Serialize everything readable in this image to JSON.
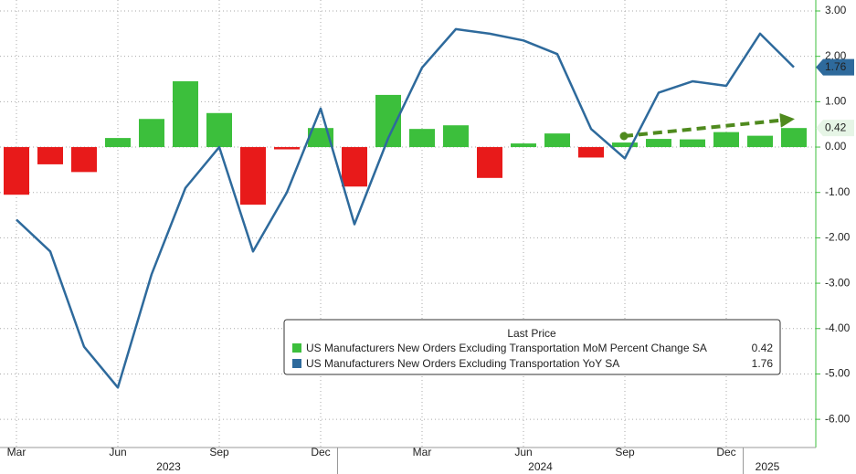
{
  "chart_data": {
    "type": "bar_line",
    "categories": [
      "Mar",
      null,
      null,
      "Jun",
      null,
      null,
      "Sep",
      null,
      null,
      "Dec",
      null,
      null,
      "Mar",
      null,
      null,
      "Jun",
      null,
      null,
      "Sep",
      null,
      null,
      "Dec",
      null,
      null
    ],
    "years": [
      "2023",
      "2024",
      "2025"
    ],
    "legend_title": "Last Price",
    "series": [
      {
        "name": "US Manufacturers New Orders Excluding Transportation MoM Percent Change SA",
        "color": "#3cbf3c",
        "negative_color": "#e81a1a",
        "values": [
          -1.05,
          -0.38,
          -0.55,
          0.2,
          0.62,
          1.45,
          0.75,
          -1.27,
          -0.05,
          0.42,
          -0.87,
          1.15,
          0.4,
          0.48,
          -0.68,
          0.08,
          0.3,
          -0.23,
          0.1,
          0.18,
          0.17,
          0.33,
          0.25,
          0.42
        ]
      },
      {
        "name": "US Manufacturers New Orders Excluding Transportation YoY SA",
        "color": "#2e6a9c",
        "values": [
          -1.6,
          -2.3,
          -4.4,
          -5.3,
          -2.8,
          -0.9,
          0.0,
          -2.3,
          -1.0,
          0.85,
          -1.7,
          0.2,
          1.75,
          2.6,
          2.5,
          2.35,
          2.05,
          0.4,
          -0.25,
          1.2,
          1.45,
          1.35,
          2.5,
          1.76
        ]
      }
    ],
    "ylim": [
      -6.2,
      3.2
    ],
    "yticks": [
      {
        "value": 3,
        "label": "3.00"
      },
      {
        "value": 2,
        "label": "2.00"
      },
      {
        "value": 1,
        "label": "1.00"
      },
      {
        "value": 0,
        "label": "0.00"
      },
      {
        "value": -1,
        "label": "-1.00"
      },
      {
        "value": -2,
        "label": "-2.00"
      },
      {
        "value": -3,
        "label": "-3.00"
      },
      {
        "value": -4,
        "label": "-4.00"
      },
      {
        "value": -5,
        "label": "-5.00"
      },
      {
        "value": -6,
        "label": "-6.00"
      }
    ],
    "grid": true
  }
}
